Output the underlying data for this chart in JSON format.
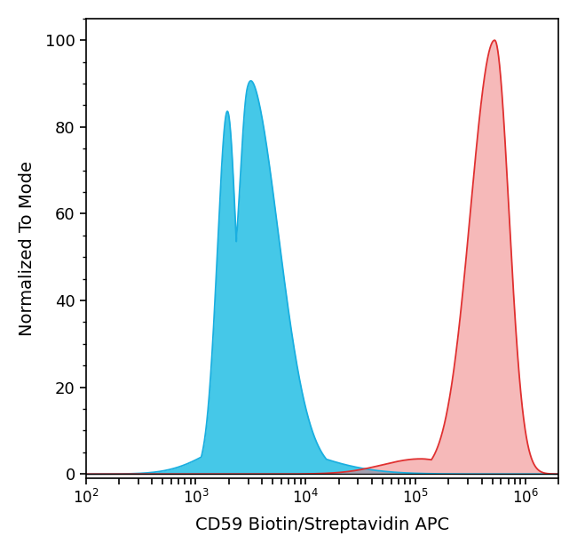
{
  "title": "",
  "xlabel": "CD59 Biotin/Streptavidin APC",
  "ylabel": "Normalized To Mode",
  "xlim_log": [
    100,
    2000000
  ],
  "ylim": [
    -1,
    105
  ],
  "yticks": [
    0,
    20,
    40,
    60,
    80,
    100
  ],
  "background_color": "#ffffff",
  "cyan_fill_color": "#45C8E8",
  "cyan_edge_color": "#1AAFE0",
  "red_fill_color": "#F08080",
  "red_edge_color": "#E03030"
}
